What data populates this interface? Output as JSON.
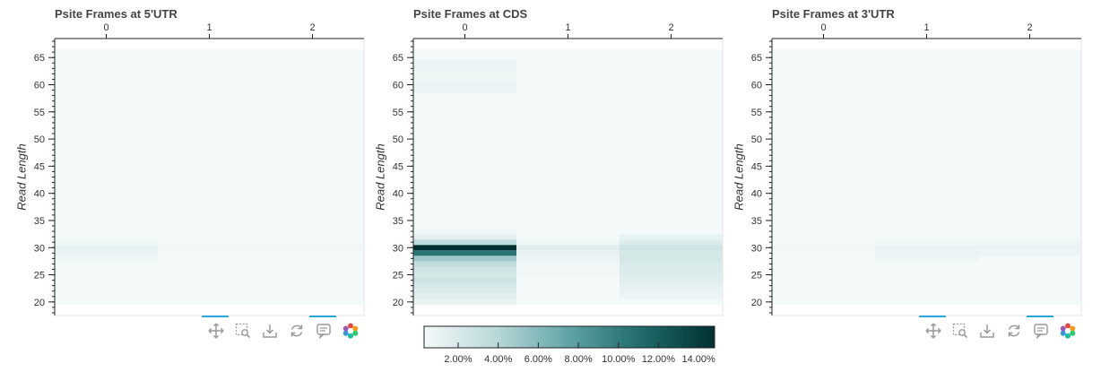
{
  "panels": [
    {
      "title": "Psite Frames at 5'UTR",
      "ylabel": "Read Length",
      "has_colorbar": false,
      "has_toolbar": true
    },
    {
      "title": "Psite Frames at CDS",
      "ylabel": "Read Length",
      "has_colorbar": true,
      "has_toolbar": false
    },
    {
      "title": "Psite Frames at 3'UTR",
      "ylabel": "Read Length",
      "has_colorbar": false,
      "has_toolbar": true
    }
  ],
  "toolbar": {
    "tools": [
      {
        "name": "pan-icon",
        "active": true
      },
      {
        "name": "box-zoom-icon",
        "active": false
      },
      {
        "name": "save-icon",
        "active": false
      },
      {
        "name": "reset-icon",
        "active": false
      },
      {
        "name": "hover-icon",
        "active": true
      },
      {
        "name": "bokeh-logo",
        "active": false
      }
    ]
  },
  "colorbar": {
    "ticks": [
      "2.00%",
      "4.00%",
      "6.00%",
      "8.00%",
      "10.00%",
      "12.00%",
      "14.00%"
    ],
    "tick_values": [
      2,
      4,
      6,
      8,
      10,
      12,
      14
    ],
    "range": [
      0.3,
      14.8
    ],
    "colors": [
      "#f4f9f9",
      "#b9d8d9",
      "#5fa3a4",
      "#1f6a6a",
      "#00302f"
    ]
  },
  "chart_data": [
    {
      "type": "heatmap",
      "title": "Psite Frames at 5'UTR",
      "ylabel": "Read Length",
      "x_categories": [
        "0",
        "1",
        "2"
      ],
      "y_range": [
        19.5,
        66.5
      ],
      "y_axis_range": [
        17.5,
        68.5
      ],
      "y_ticks": [
        20,
        25,
        30,
        35,
        40,
        45,
        50,
        55,
        60,
        65
      ],
      "base_value": 0.3,
      "cells": [
        {
          "x": "0",
          "y": 28,
          "value": 0.6
        },
        {
          "x": "0",
          "y": 29,
          "value": 0.9
        },
        {
          "x": "0",
          "y": 30,
          "value": 1.1
        },
        {
          "x": "0",
          "y": 31,
          "value": 0.6
        },
        {
          "x": "1",
          "y": 30,
          "value": 0.5
        },
        {
          "x": "2",
          "y": 30,
          "value": 0.5
        }
      ]
    },
    {
      "type": "heatmap",
      "title": "Psite Frames at CDS",
      "ylabel": "Read Length",
      "x_categories": [
        "0",
        "1",
        "2"
      ],
      "y_range": [
        19.5,
        66.5
      ],
      "y_axis_range": [
        17.5,
        68.5
      ],
      "y_ticks": [
        20,
        25,
        30,
        35,
        40,
        45,
        50,
        55,
        60,
        65
      ],
      "base_value": 0.3,
      "cells": [
        {
          "x": "0",
          "y": 20,
          "value": 1.0
        },
        {
          "x": "0",
          "y": 21,
          "value": 1.4
        },
        {
          "x": "0",
          "y": 22,
          "value": 1.8
        },
        {
          "x": "0",
          "y": 23,
          "value": 2.2
        },
        {
          "x": "0",
          "y": 24,
          "value": 2.8
        },
        {
          "x": "0",
          "y": 25,
          "value": 2.4
        },
        {
          "x": "0",
          "y": 26,
          "value": 2.6
        },
        {
          "x": "0",
          "y": 27,
          "value": 3.4
        },
        {
          "x": "0",
          "y": 28,
          "value": 5.0
        },
        {
          "x": "0",
          "y": 29,
          "value": 10.5
        },
        {
          "x": "0",
          "y": 30,
          "value": 14.8
        },
        {
          "x": "0",
          "y": 31,
          "value": 3.5
        },
        {
          "x": "0",
          "y": 32,
          "value": 1.2
        },
        {
          "x": "0",
          "y": 33,
          "value": 0.6
        },
        {
          "x": "0",
          "y": 59,
          "value": 0.8
        },
        {
          "x": "0",
          "y": 60,
          "value": 0.9
        },
        {
          "x": "0",
          "y": 61,
          "value": 0.7
        },
        {
          "x": "0",
          "y": 62,
          "value": 0.6
        },
        {
          "x": "0",
          "y": 63,
          "value": 0.8
        },
        {
          "x": "0",
          "y": 64,
          "value": 0.9
        },
        {
          "x": "1",
          "y": 25,
          "value": 0.5
        },
        {
          "x": "1",
          "y": 26,
          "value": 0.5
        },
        {
          "x": "1",
          "y": 27,
          "value": 0.6
        },
        {
          "x": "1",
          "y": 28,
          "value": 0.8
        },
        {
          "x": "1",
          "y": 29,
          "value": 1.2
        },
        {
          "x": "1",
          "y": 30,
          "value": 1.5
        },
        {
          "x": "1",
          "y": 31,
          "value": 0.7
        },
        {
          "x": "2",
          "y": 21,
          "value": 0.8
        },
        {
          "x": "2",
          "y": 22,
          "value": 1.0
        },
        {
          "x": "2",
          "y": 23,
          "value": 1.2
        },
        {
          "x": "2",
          "y": 24,
          "value": 1.5
        },
        {
          "x": "2",
          "y": 25,
          "value": 1.7
        },
        {
          "x": "2",
          "y": 26,
          "value": 1.8
        },
        {
          "x": "2",
          "y": 27,
          "value": 2.0
        },
        {
          "x": "2",
          "y": 28,
          "value": 2.4
        },
        {
          "x": "2",
          "y": 29,
          "value": 2.2
        },
        {
          "x": "2",
          "y": 30,
          "value": 2.6
        },
        {
          "x": "2",
          "y": 31,
          "value": 1.8
        },
        {
          "x": "2",
          "y": 32,
          "value": 1.1
        }
      ]
    },
    {
      "type": "heatmap",
      "title": "Psite Frames at 3'UTR",
      "ylabel": "Read Length",
      "x_categories": [
        "0",
        "1",
        "2"
      ],
      "y_range": [
        19.5,
        66.5
      ],
      "y_axis_range": [
        17.5,
        68.5
      ],
      "y_ticks": [
        20,
        25,
        30,
        35,
        40,
        45,
        50,
        55,
        60,
        65
      ],
      "base_value": 0.3,
      "cells": [
        {
          "x": "0",
          "y": 30,
          "value": 0.5
        },
        {
          "x": "1",
          "y": 28,
          "value": 0.7
        },
        {
          "x": "1",
          "y": 29,
          "value": 0.9
        },
        {
          "x": "1",
          "y": 30,
          "value": 1.0
        },
        {
          "x": "1",
          "y": 31,
          "value": 0.6
        },
        {
          "x": "2",
          "y": 29,
          "value": 0.8
        },
        {
          "x": "2",
          "y": 30,
          "value": 1.0
        },
        {
          "x": "2",
          "y": 31,
          "value": 0.6
        }
      ]
    }
  ]
}
